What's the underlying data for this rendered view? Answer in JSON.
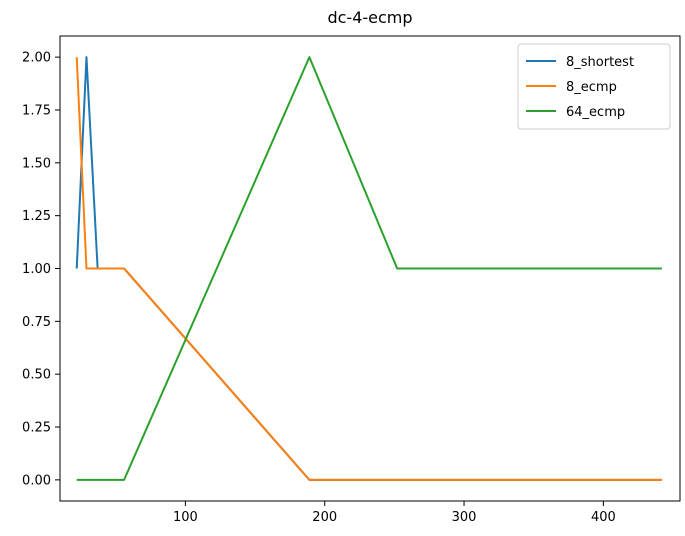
{
  "chart_data": {
    "type": "line",
    "title": "dc-4-ecmp",
    "xlabel": "",
    "ylabel": "",
    "xlim": [
      10,
      455
    ],
    "ylim": [
      -0.1,
      2.1
    ],
    "xticks": [
      100,
      200,
      300,
      400
    ],
    "xtick_labels": [
      "100",
      "200",
      "300",
      "400"
    ],
    "yticks": [
      0.0,
      0.25,
      0.5,
      0.75,
      1.0,
      1.25,
      1.5,
      1.75,
      2.0
    ],
    "ytick_labels": [
      "0.00",
      "0.25",
      "0.50",
      "0.75",
      "1.00",
      "1.25",
      "1.50",
      "1.75",
      "2.00"
    ],
    "grid": false,
    "legend_position": "top-right",
    "series": [
      {
        "name": "8_shortest",
        "color": "#1f77b4",
        "x": [
          22,
          29,
          37,
          40,
          56,
          189,
          252,
          442
        ],
        "y": [
          1.0,
          2.0,
          1.0,
          1.0,
          1.0,
          0.0,
          0.0,
          0.0
        ]
      },
      {
        "name": "8_ecmp",
        "color": "#ff7f0e",
        "x": [
          22,
          29,
          37,
          40,
          56,
          189,
          252,
          442
        ],
        "y": [
          2.0,
          1.0,
          1.0,
          1.0,
          1.0,
          0.0,
          0.0,
          0.0
        ]
      },
      {
        "name": "64_ecmp",
        "color": "#2ca02c",
        "x": [
          22,
          29,
          37,
          40,
          56,
          189,
          252,
          442
        ],
        "y": [
          0.0,
          0.0,
          0.0,
          0.0,
          0.0,
          2.0,
          1.0,
          1.0
        ]
      }
    ]
  }
}
